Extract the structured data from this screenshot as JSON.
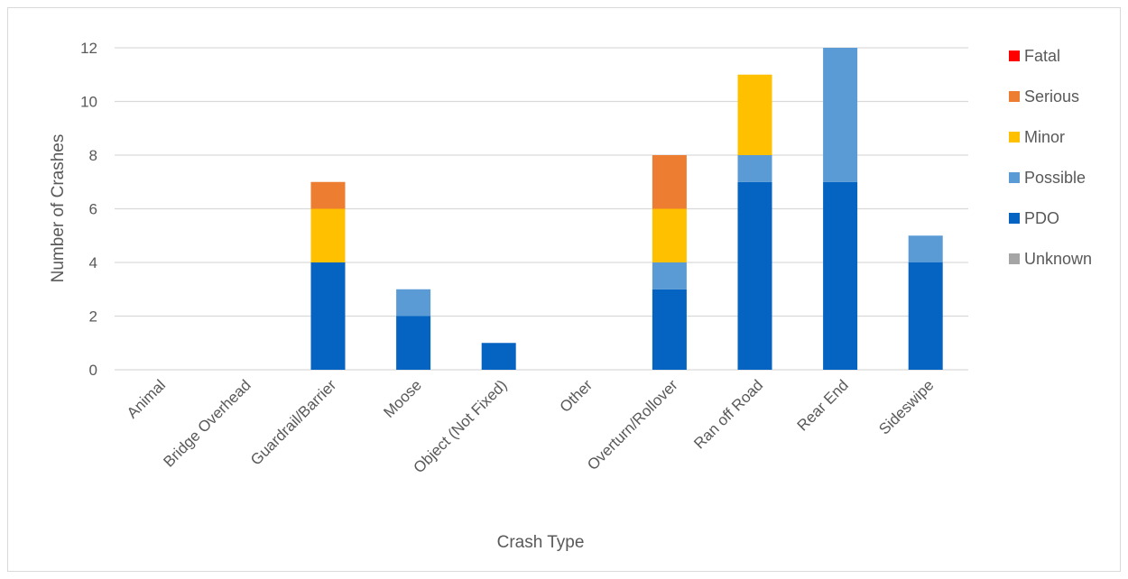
{
  "chart_data": {
    "type": "bar",
    "stacked": true,
    "title": "",
    "xlabel": "Crash Type",
    "ylabel": "Number of Crashes",
    "ylim": [
      0,
      12
    ],
    "yticks": [
      0,
      2,
      4,
      6,
      8,
      10,
      12
    ],
    "grid": true,
    "legend_position": "right",
    "categories": [
      "Animal",
      "Bridge Overhead",
      "Guardrail/Barrier",
      "Moose",
      "Object (Not Fixed)",
      "Other",
      "Overturn/Rollover",
      "Ran off Road",
      "Rear End",
      "Sideswipe"
    ],
    "series": [
      {
        "name": "Unknown",
        "color": "#a5a5a5",
        "values": [
          0,
          0,
          0,
          0,
          0,
          0,
          0,
          0,
          0,
          0
        ]
      },
      {
        "name": "PDO",
        "color": "#0563c1",
        "values": [
          0,
          0,
          4,
          2,
          1,
          0,
          3,
          7,
          7,
          4
        ]
      },
      {
        "name": "Possible",
        "color": "#5b9bd5",
        "values": [
          0,
          0,
          0,
          1,
          0,
          0,
          1,
          1,
          5,
          1
        ]
      },
      {
        "name": "Minor",
        "color": "#ffc000",
        "values": [
          0,
          0,
          2,
          0,
          0,
          0,
          2,
          3,
          0,
          0
        ]
      },
      {
        "name": "Serious",
        "color": "#ed7d31",
        "values": [
          0,
          0,
          1,
          0,
          0,
          0,
          2,
          0,
          0,
          0
        ]
      },
      {
        "name": "Fatal",
        "color": "#ff0000",
        "values": [
          0,
          0,
          0,
          0,
          0,
          0,
          0,
          0,
          0,
          0
        ]
      }
    ],
    "legend_order": [
      "Fatal",
      "Serious",
      "Minor",
      "Possible",
      "PDO",
      "Unknown"
    ]
  }
}
